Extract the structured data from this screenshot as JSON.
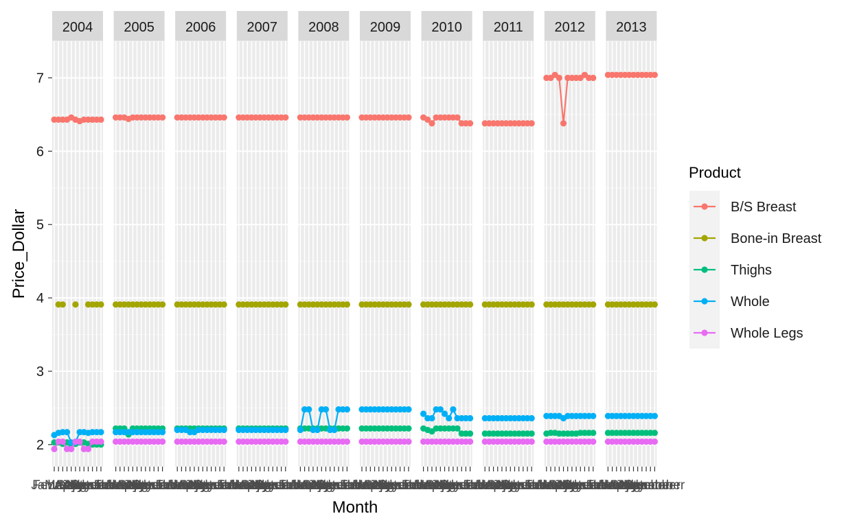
{
  "chart_data": {
    "type": "line",
    "facet": "year",
    "years": [
      "2004",
      "2005",
      "2006",
      "2007",
      "2008",
      "2009",
      "2010",
      "2011",
      "2012",
      "2013"
    ],
    "x_categories": [
      "January",
      "February",
      "March",
      "April",
      "May",
      "June",
      "July",
      "August",
      "September",
      "October",
      "November",
      "December"
    ],
    "xlabel": "Month",
    "ylabel": "Price_Dollar",
    "y_ticks": [
      2,
      3,
      4,
      5,
      6,
      7
    ],
    "ylim": [
      1.7,
      7.5
    ],
    "grid": true,
    "legend": {
      "title": "Product",
      "placement": "right"
    },
    "x_tick_overlap_labels": [
      "December",
      "December"
    ],
    "series": [
      {
        "name": "B/S Breast",
        "color": "#F8766D",
        "values_by_year": {
          "2004": [
            6.43,
            6.43,
            6.43,
            6.43,
            6.46,
            6.43,
            6.41,
            6.43,
            6.43,
            6.43,
            6.43,
            6.43
          ],
          "2005": [
            6.46,
            6.46,
            6.46,
            6.44,
            6.46,
            6.46,
            6.46,
            6.46,
            6.46,
            6.46,
            6.46,
            6.46
          ],
          "2006": [
            6.46,
            6.46,
            6.46,
            6.46,
            6.46,
            6.46,
            6.46,
            6.46,
            6.46,
            6.46,
            6.46,
            6.46
          ],
          "2007": [
            6.46,
            6.46,
            6.46,
            6.46,
            6.46,
            6.46,
            6.46,
            6.46,
            6.46,
            6.46,
            6.46,
            6.46
          ],
          "2008": [
            6.46,
            6.46,
            6.46,
            6.46,
            6.46,
            6.46,
            6.46,
            6.46,
            6.46,
            6.46,
            6.46,
            6.46
          ],
          "2009": [
            6.46,
            6.46,
            6.46,
            6.46,
            6.46,
            6.46,
            6.46,
            6.46,
            6.46,
            6.46,
            6.46,
            6.46
          ],
          "2010": [
            6.46,
            6.43,
            6.38,
            6.46,
            6.46,
            6.46,
            6.46,
            6.46,
            6.46,
            6.38,
            6.38,
            6.38
          ],
          "2011": [
            6.38,
            6.38,
            6.38,
            6.38,
            6.38,
            6.38,
            6.38,
            6.38,
            6.38,
            6.38,
            6.38,
            6.38
          ],
          "2012": [
            7.0,
            7.0,
            7.04,
            7.0,
            6.38,
            7.0,
            7.0,
            7.0,
            7.0,
            7.04,
            7.0,
            7.0
          ],
          "2013": [
            7.04,
            7.04,
            7.04,
            7.04,
            7.04,
            7.04,
            7.04,
            7.04,
            7.04,
            7.04,
            7.04,
            7.04
          ]
        }
      },
      {
        "name": "Bone-in Breast",
        "color": "#A3A500",
        "values_by_year": {
          "2004": [
            null,
            3.91,
            3.91,
            null,
            null,
            3.91,
            null,
            null,
            3.91,
            3.91,
            3.91,
            3.91
          ],
          "2005": [
            3.91,
            3.91,
            3.91,
            3.91,
            3.91,
            3.91,
            3.91,
            3.91,
            3.91,
            3.91,
            3.91,
            3.91
          ],
          "2006": [
            3.91,
            3.91,
            3.91,
            3.91,
            3.91,
            3.91,
            3.91,
            3.91,
            3.91,
            3.91,
            3.91,
            3.91
          ],
          "2007": [
            3.91,
            3.91,
            3.91,
            3.91,
            3.91,
            3.91,
            3.91,
            3.91,
            3.91,
            3.91,
            3.91,
            3.91
          ],
          "2008": [
            3.91,
            3.91,
            3.91,
            3.91,
            3.91,
            3.91,
            3.91,
            3.91,
            3.91,
            3.91,
            3.91,
            3.91
          ],
          "2009": [
            3.91,
            3.91,
            3.91,
            3.91,
            3.91,
            3.91,
            3.91,
            3.91,
            3.91,
            3.91,
            3.91,
            3.91
          ],
          "2010": [
            3.91,
            3.91,
            3.91,
            3.91,
            3.91,
            3.91,
            3.91,
            3.91,
            3.91,
            3.91,
            3.91,
            3.91
          ],
          "2011": [
            3.91,
            3.91,
            3.91,
            3.91,
            3.91,
            3.91,
            3.91,
            3.91,
            3.91,
            3.91,
            3.91,
            3.91
          ],
          "2012": [
            3.91,
            3.91,
            3.91,
            3.91,
            3.91,
            3.91,
            3.91,
            3.91,
            3.91,
            3.91,
            3.91,
            3.91
          ],
          "2013": [
            3.91,
            3.91,
            3.91,
            3.91,
            3.91,
            3.91,
            3.91,
            3.91,
            3.91,
            3.91,
            3.91,
            3.91
          ]
        }
      },
      {
        "name": "Thighs",
        "color": "#00BF7D",
        "values_by_year": {
          "2004": [
            2.03,
            2.03,
            2.01,
            2.03,
            2.0,
            2.01,
            2.03,
            2.03,
            2.01,
            2.0,
            2.0,
            2.0
          ],
          "2005": [
            2.22,
            2.22,
            2.22,
            2.14,
            2.22,
            2.22,
            2.22,
            2.22,
            2.22,
            2.22,
            2.22,
            2.22
          ],
          "2006": [
            2.22,
            2.22,
            2.22,
            2.22,
            2.22,
            2.22,
            2.22,
            2.22,
            2.22,
            2.22,
            2.22,
            2.22
          ],
          "2007": [
            2.22,
            2.22,
            2.22,
            2.22,
            2.22,
            2.22,
            2.22,
            2.22,
            2.22,
            2.22,
            2.22,
            2.22
          ],
          "2008": [
            2.22,
            2.22,
            2.22,
            2.22,
            2.22,
            2.22,
            2.22,
            2.22,
            2.22,
            2.22,
            2.22,
            2.22
          ],
          "2009": [
            2.22,
            2.22,
            2.22,
            2.22,
            2.22,
            2.22,
            2.22,
            2.22,
            2.22,
            2.22,
            2.22,
            2.22
          ],
          "2010": [
            2.22,
            2.2,
            2.18,
            2.22,
            2.22,
            2.22,
            2.22,
            2.22,
            2.22,
            2.15,
            2.15,
            2.15
          ],
          "2011": [
            2.15,
            2.15,
            2.15,
            2.15,
            2.15,
            2.15,
            2.15,
            2.15,
            2.15,
            2.15,
            2.15,
            2.15
          ],
          "2012": [
            2.15,
            2.16,
            2.16,
            2.15,
            2.15,
            2.15,
            2.15,
            2.15,
            2.16,
            2.16,
            2.16,
            2.16
          ],
          "2013": [
            2.16,
            2.16,
            2.16,
            2.16,
            2.16,
            2.16,
            2.16,
            2.16,
            2.16,
            2.16,
            2.16,
            2.16
          ]
        }
      },
      {
        "name": "Whole",
        "color": "#00B0F6",
        "values_by_year": {
          "2004": [
            2.13,
            2.16,
            2.17,
            2.17,
            2.03,
            2.03,
            2.17,
            2.17,
            2.16,
            2.17,
            2.17,
            2.17
          ],
          "2005": [
            2.17,
            2.17,
            2.17,
            2.17,
            2.17,
            2.17,
            2.17,
            2.17,
            2.17,
            2.17,
            2.17,
            2.17
          ],
          "2006": [
            2.2,
            2.2,
            2.2,
            2.17,
            2.17,
            2.2,
            2.2,
            2.2,
            2.2,
            2.2,
            2.2,
            2.2
          ],
          "2007": [
            2.2,
            2.2,
            2.2,
            2.2,
            2.2,
            2.2,
            2.2,
            2.2,
            2.2,
            2.2,
            2.2,
            2.2
          ],
          "2008": [
            2.2,
            2.48,
            2.48,
            2.2,
            2.2,
            2.48,
            2.48,
            2.2,
            2.2,
            2.48,
            2.48,
            2.48
          ],
          "2009": [
            2.48,
            2.48,
            2.48,
            2.48,
            2.48,
            2.48,
            2.48,
            2.48,
            2.48,
            2.48,
            2.48,
            2.48
          ],
          "2010": [
            2.42,
            2.36,
            2.36,
            2.48,
            2.48,
            2.42,
            2.36,
            2.48,
            2.36,
            2.36,
            2.36,
            2.36
          ],
          "2011": [
            2.36,
            2.36,
            2.36,
            2.36,
            2.36,
            2.36,
            2.36,
            2.36,
            2.36,
            2.36,
            2.36,
            2.36
          ],
          "2012": [
            2.39,
            2.39,
            2.39,
            2.39,
            2.36,
            2.39,
            2.39,
            2.39,
            2.39,
            2.39,
            2.39,
            2.39
          ],
          "2013": [
            2.39,
            2.39,
            2.39,
            2.39,
            2.39,
            2.39,
            2.39,
            2.39,
            2.39,
            2.39,
            2.39,
            2.39
          ]
        }
      },
      {
        "name": "Whole Legs",
        "color": "#E76BF3",
        "values_by_year": {
          "2004": [
            1.94,
            2.04,
            2.04,
            1.94,
            1.94,
            2.04,
            2.04,
            1.94,
            1.94,
            2.04,
            2.04,
            2.04
          ],
          "2005": [
            2.04,
            2.04,
            2.04,
            2.04,
            2.04,
            2.04,
            2.04,
            2.04,
            2.04,
            2.04,
            2.04,
            2.04
          ],
          "2006": [
            2.04,
            2.04,
            2.04,
            2.04,
            2.04,
            2.04,
            2.04,
            2.04,
            2.04,
            2.04,
            2.04,
            2.04
          ],
          "2007": [
            2.04,
            2.04,
            2.04,
            2.04,
            2.04,
            2.04,
            2.04,
            2.04,
            2.04,
            2.04,
            2.04,
            2.04
          ],
          "2008": [
            2.04,
            2.04,
            2.04,
            2.04,
            2.04,
            2.04,
            2.04,
            2.04,
            2.04,
            2.04,
            2.04,
            2.04
          ],
          "2009": [
            2.04,
            2.04,
            2.04,
            2.04,
            2.04,
            2.04,
            2.04,
            2.04,
            2.04,
            2.04,
            2.04,
            2.04
          ],
          "2010": [
            2.04,
            2.04,
            2.04,
            2.04,
            2.04,
            2.04,
            2.04,
            2.04,
            2.04,
            2.04,
            2.04,
            2.04
          ],
          "2011": [
            2.04,
            2.04,
            2.04,
            2.04,
            2.04,
            2.04,
            2.04,
            2.04,
            2.04,
            2.04,
            2.04,
            2.04
          ],
          "2012": [
            2.04,
            2.04,
            2.04,
            2.04,
            2.04,
            2.04,
            2.04,
            2.04,
            2.04,
            2.04,
            2.04,
            2.04
          ],
          "2013": [
            2.04,
            2.04,
            2.04,
            2.04,
            2.04,
            2.04,
            2.04,
            2.04,
            2.04,
            2.04,
            2.04,
            2.04
          ]
        }
      }
    ]
  }
}
